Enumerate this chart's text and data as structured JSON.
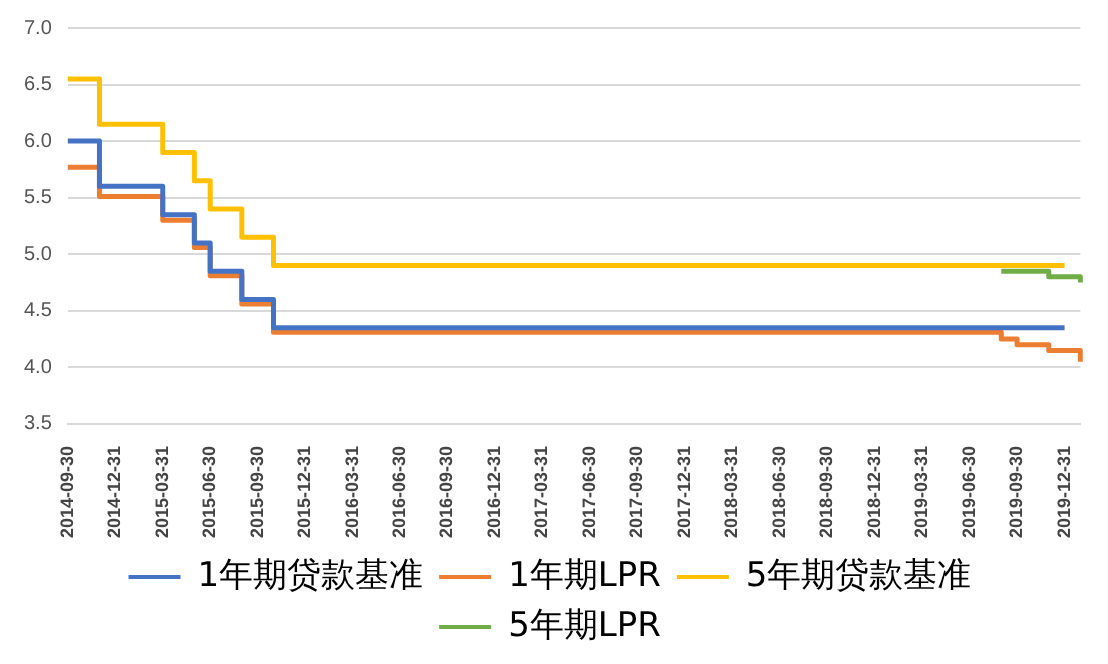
{
  "chart_data": {
    "type": "step",
    "categories": [
      "2014-09-30",
      null,
      null,
      "2014-12-31",
      null,
      null,
      "2015-03-31",
      null,
      null,
      "2015-06-30",
      null,
      null,
      "2015-09-30",
      null,
      null,
      "2015-12-31",
      null,
      null,
      "2016-03-31",
      null,
      null,
      "2016-06-30",
      null,
      null,
      "2016-09-30",
      null,
      null,
      "2016-12-31",
      null,
      null,
      "2017-03-31",
      null,
      null,
      "2017-06-30",
      null,
      null,
      "2017-09-30",
      null,
      null,
      "2017-12-31",
      null,
      null,
      "2018-03-31",
      null,
      null,
      "2018-06-30",
      null,
      null,
      "2018-09-30",
      null,
      null,
      "2018-12-31",
      null,
      null,
      "2019-03-31",
      null,
      null,
      "2019-06-30",
      null,
      null,
      "2019-09-30",
      null,
      null,
      "2019-12-31",
      null
    ],
    "series": [
      {
        "name": "1年期贷款基准",
        "color": "#4472c4",
        "values": [
          6.0,
          6.0,
          5.6,
          5.6,
          5.6,
          5.6,
          5.35,
          5.35,
          5.1,
          4.85,
          4.85,
          4.6,
          4.6,
          4.35,
          4.35,
          4.35,
          4.35,
          4.35,
          4.35,
          4.35,
          4.35,
          4.35,
          4.35,
          4.35,
          4.35,
          4.35,
          4.35,
          4.35,
          4.35,
          4.35,
          4.35,
          4.35,
          4.35,
          4.35,
          4.35,
          4.35,
          4.35,
          4.35,
          4.35,
          4.35,
          4.35,
          4.35,
          4.35,
          4.35,
          4.35,
          4.35,
          4.35,
          4.35,
          4.35,
          4.35,
          4.35,
          4.35,
          4.35,
          4.35,
          4.35,
          4.35,
          4.35,
          4.35,
          4.35,
          4.35,
          4.35,
          4.35,
          4.35,
          4.35,
          null
        ]
      },
      {
        "name": "1年期LPR",
        "color": "#ed7d31",
        "values": [
          5.77,
          5.77,
          5.51,
          5.51,
          5.51,
          5.51,
          5.3,
          5.3,
          5.06,
          4.81,
          4.81,
          4.56,
          4.56,
          4.31,
          4.31,
          4.31,
          4.31,
          4.31,
          4.31,
          4.31,
          4.31,
          4.31,
          4.31,
          4.31,
          4.31,
          4.31,
          4.31,
          4.31,
          4.31,
          4.31,
          4.31,
          4.31,
          4.31,
          4.31,
          4.31,
          4.31,
          4.31,
          4.31,
          4.31,
          4.31,
          4.31,
          4.31,
          4.31,
          4.31,
          4.31,
          4.31,
          4.31,
          4.31,
          4.31,
          4.31,
          4.31,
          4.31,
          4.31,
          4.31,
          4.31,
          4.31,
          4.31,
          4.31,
          4.31,
          4.25,
          4.2,
          4.2,
          4.15,
          4.15,
          4.05
        ]
      },
      {
        "name": "5年期贷款基准",
        "color": "#ffc000",
        "values": [
          6.55,
          6.55,
          6.15,
          6.15,
          6.15,
          6.15,
          5.9,
          5.9,
          5.65,
          5.4,
          5.4,
          5.15,
          5.15,
          4.9,
          4.9,
          4.9,
          4.9,
          4.9,
          4.9,
          4.9,
          4.9,
          4.9,
          4.9,
          4.9,
          4.9,
          4.9,
          4.9,
          4.9,
          4.9,
          4.9,
          4.9,
          4.9,
          4.9,
          4.9,
          4.9,
          4.9,
          4.9,
          4.9,
          4.9,
          4.9,
          4.9,
          4.9,
          4.9,
          4.9,
          4.9,
          4.9,
          4.9,
          4.9,
          4.9,
          4.9,
          4.9,
          4.9,
          4.9,
          4.9,
          4.9,
          4.9,
          4.9,
          4.9,
          4.9,
          4.9,
          4.9,
          4.9,
          4.9,
          4.9,
          null
        ]
      },
      {
        "name": "5年期LPR",
        "color": "#70ad47",
        "values": [
          null,
          null,
          null,
          null,
          null,
          null,
          null,
          null,
          null,
          null,
          null,
          null,
          null,
          null,
          null,
          null,
          null,
          null,
          null,
          null,
          null,
          null,
          null,
          null,
          null,
          null,
          null,
          null,
          null,
          null,
          null,
          null,
          null,
          null,
          null,
          null,
          null,
          null,
          null,
          null,
          null,
          null,
          null,
          null,
          null,
          null,
          null,
          null,
          null,
          null,
          null,
          null,
          null,
          null,
          null,
          null,
          null,
          null,
          null,
          4.85,
          4.85,
          4.85,
          4.8,
          4.8,
          4.75
        ]
      }
    ],
    "ylim": [
      3.5,
      7.0
    ],
    "yticks": [
      {
        "value": 3.5,
        "label": "3.5"
      },
      {
        "value": 4,
        "label": "4.0"
      },
      {
        "value": 4.5,
        "label": "4.5"
      },
      {
        "value": 5,
        "label": "5.0"
      },
      {
        "value": 5.5,
        "label": "5.5"
      },
      {
        "value": 6,
        "label": "6.0"
      },
      {
        "value": 6.5,
        "label": "6.5"
      },
      {
        "value": 7,
        "label": "7.0"
      }
    ],
    "grid": "y",
    "legend": "bottom",
    "marker": "none",
    "line_style": "solid"
  }
}
